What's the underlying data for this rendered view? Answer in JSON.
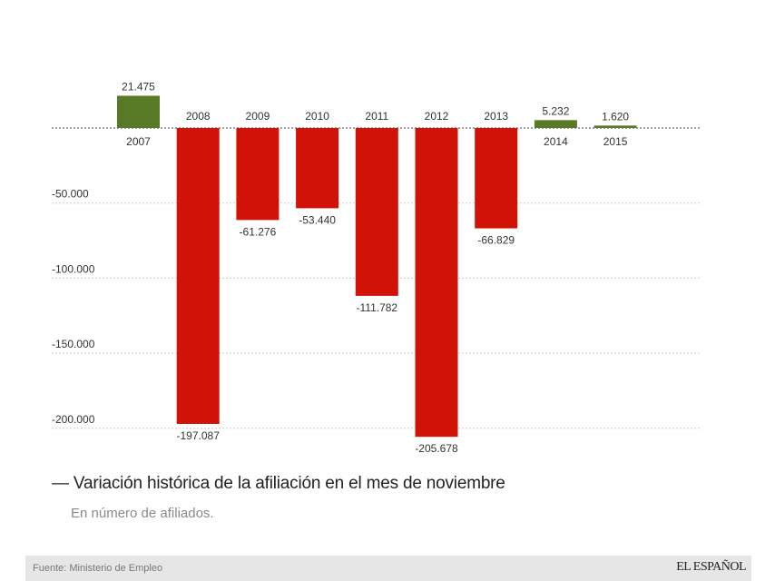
{
  "title_prefix": "—",
  "title": "Variación histórica de la afiliación en el mes de noviembre",
  "subtitle": "En número de afiliados.",
  "footer": {
    "source": "Fuente: Ministerio de Empleo",
    "brand": "EL ESPAÑOL"
  },
  "colors": {
    "positive": "#587a26",
    "negative": "#d01306",
    "grid": "#cccccc",
    "zero_line": "#444444",
    "text": "#333333"
  },
  "chart_data": {
    "type": "bar",
    "title": "Variación histórica de la afiliación en el mes de noviembre",
    "subtitle": "En número de afiliados.",
    "xlabel": "",
    "ylabel": "",
    "categories": [
      "2007",
      "2008",
      "2009",
      "2010",
      "2011",
      "2012",
      "2013",
      "2014",
      "2015"
    ],
    "values": [
      21475,
      -197087,
      -61276,
      -53440,
      -111782,
      -205678,
      -66829,
      5232,
      1620
    ],
    "value_labels": [
      "21.475",
      "-197.087",
      "-61.276",
      "-53.440",
      "-111.782",
      "-205.678",
      "-66.829",
      "5.232",
      "1.620"
    ],
    "yticks": [
      -50000,
      -100000,
      -150000,
      -200000
    ],
    "ytick_labels": [
      "-50.000",
      "-100.000",
      "-150.000",
      "-200.000"
    ],
    "ylim": [
      -220000,
      40000
    ],
    "grid": true,
    "legend": "none"
  }
}
